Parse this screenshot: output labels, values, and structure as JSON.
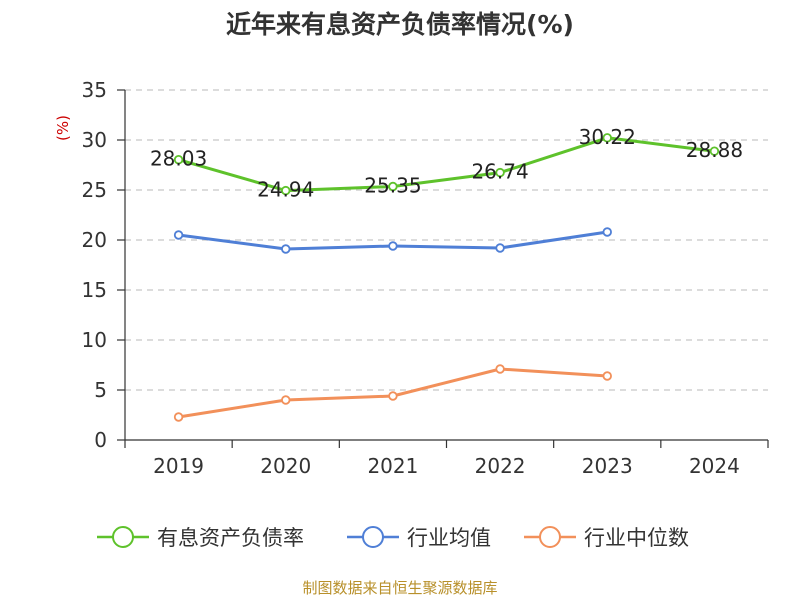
{
  "chart_data": {
    "type": "line",
    "title": "近年来有息资产负债率情况(%)",
    "ylabel": "(%)",
    "xlabel": "",
    "categories": [
      "2019",
      "2020",
      "2021",
      "2022",
      "2023",
      "2024"
    ],
    "ylim": [
      0,
      35
    ],
    "yticks": [
      0,
      5,
      10,
      15,
      20,
      25,
      30,
      35
    ],
    "grid": true,
    "legend_position": "bottom",
    "series": [
      {
        "name": "有息资产负债率",
        "color": "#5ec22b",
        "values": [
          28.03,
          24.94,
          25.35,
          26.74,
          30.22,
          28.88
        ],
        "labels": [
          "28.03",
          "24.94",
          "25.35",
          "26.74",
          "30.22",
          "28.88"
        ]
      },
      {
        "name": "行业均值",
        "color": "#4f7fd6",
        "values": [
          20.5,
          19.1,
          19.4,
          19.2,
          20.8,
          null
        ]
      },
      {
        "name": "行业中位数",
        "color": "#f2905a",
        "values": [
          2.3,
          4.0,
          4.4,
          7.1,
          6.4,
          null
        ]
      }
    ]
  },
  "source": "制图数据来自恒生聚源数据库"
}
